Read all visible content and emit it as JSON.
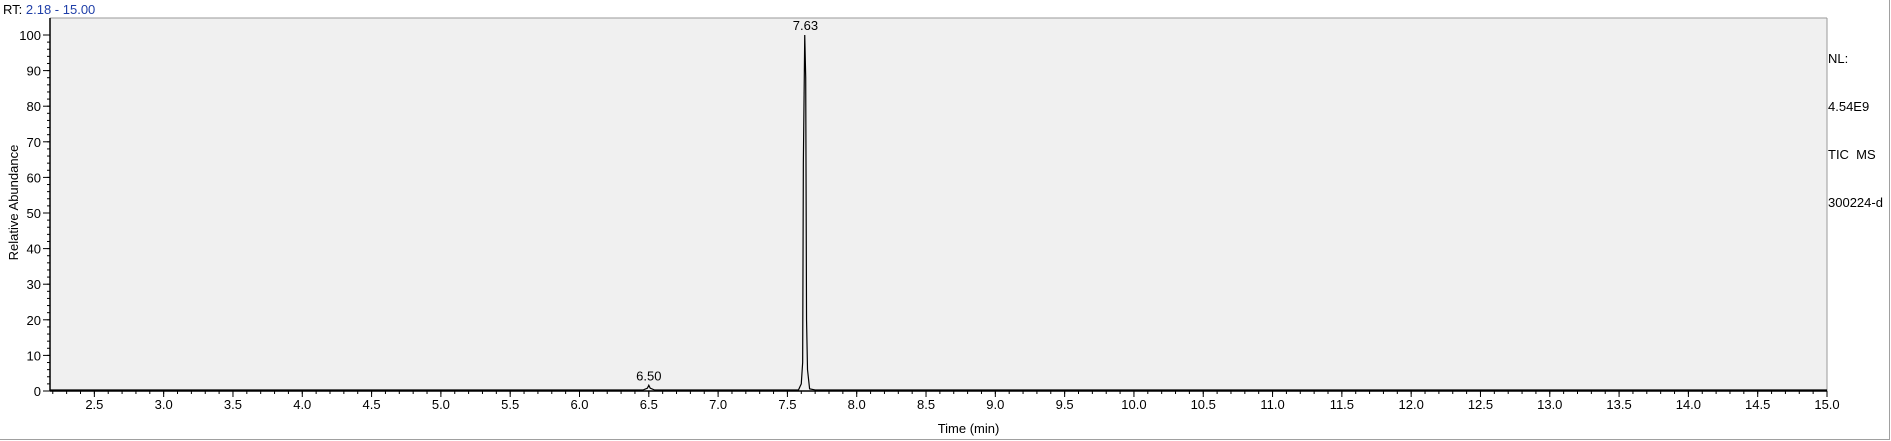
{
  "header": {
    "rt_prefix": "RT:",
    "rt_range": "2.18 - 15.00"
  },
  "info": {
    "nl_label": "NL:",
    "nl_value": "4.54E9",
    "scan_type": "TIC  MS",
    "file_name": "300224-d"
  },
  "chart_data": {
    "type": "line",
    "xlabel": "Time (min)",
    "ylabel": "Relative Abundance",
    "xlim": [
      2.18,
      15.0
    ],
    "ylim": [
      0,
      100
    ],
    "x_ticks": [
      2.5,
      3.0,
      3.5,
      4.0,
      4.5,
      5.0,
      5.5,
      6.0,
      6.5,
      7.0,
      7.5,
      8.0,
      8.5,
      9.0,
      9.5,
      10.0,
      10.5,
      11.0,
      11.5,
      12.0,
      12.5,
      13.0,
      13.5,
      14.0,
      14.5,
      15.0
    ],
    "y_ticks": [
      0,
      10,
      20,
      30,
      40,
      50,
      60,
      70,
      80,
      90,
      100
    ],
    "grid": false,
    "trace": [
      [
        2.18,
        0.3
      ],
      [
        6.46,
        0.3
      ],
      [
        6.49,
        0.8
      ],
      [
        6.5,
        1.6
      ],
      [
        6.51,
        0.8
      ],
      [
        6.54,
        0.3
      ],
      [
        7.58,
        0.3
      ],
      [
        7.6,
        2.0
      ],
      [
        7.61,
        8.0
      ],
      [
        7.615,
        64.0
      ],
      [
        7.625,
        100.0
      ],
      [
        7.632,
        88.0
      ],
      [
        7.638,
        20.0
      ],
      [
        7.645,
        6.0
      ],
      [
        7.66,
        0.6
      ],
      [
        7.7,
        0.3
      ],
      [
        15.0,
        0.3
      ]
    ],
    "peak_labels": [
      {
        "x": 7.63,
        "y": 100,
        "label": "7.63"
      },
      {
        "x": 6.5,
        "y": 1.6,
        "label": "6.50"
      }
    ]
  }
}
